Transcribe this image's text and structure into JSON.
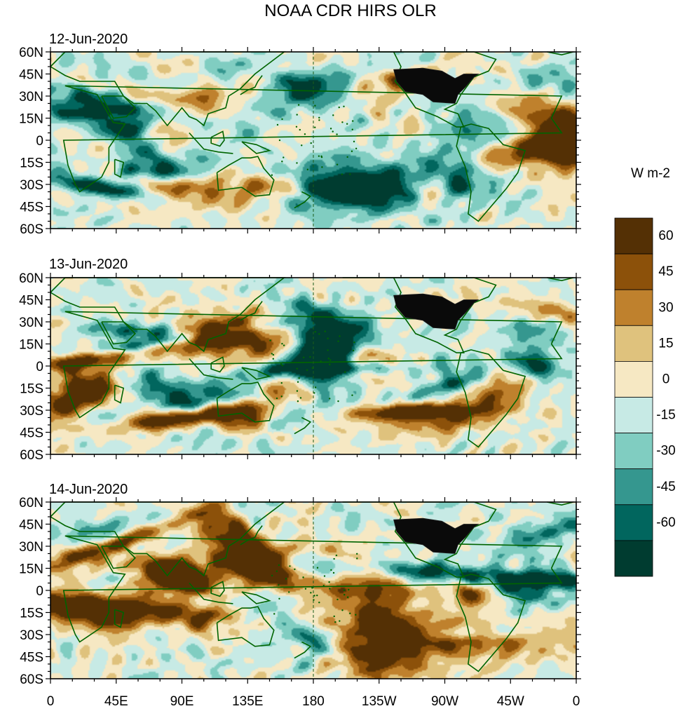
{
  "title": "NOAA CDR HIRS OLR",
  "panels": [
    {
      "date": "12-Jun-2020",
      "seed": 12
    },
    {
      "date": "13-Jun-2020",
      "seed": 13
    },
    {
      "date": "14-Jun-2020",
      "seed": 14
    }
  ],
  "lat_labels": [
    "60N",
    "45N",
    "30N",
    "15N",
    "0",
    "15S",
    "30S",
    "45S",
    "60S"
  ],
  "lon_labels": [
    "0",
    "45E",
    "90E",
    "135E",
    "180",
    "135W",
    "90W",
    "45W",
    "0"
  ],
  "colorbar": {
    "units": "W m-2",
    "tick_labels": [
      "60",
      "45",
      "30",
      "15",
      "0",
      "-15",
      "-30",
      "-45",
      "-60"
    ],
    "bins_top_to_bottom": [
      {
        "color": "#543005",
        "range": "> 60"
      },
      {
        "color": "#8c510a",
        "range": "45 to 60"
      },
      {
        "color": "#bf812d",
        "range": "30 to 45"
      },
      {
        "color": "#dfc27d",
        "range": "15 to 30"
      },
      {
        "color": "#f6e8c3",
        "range": "0 to 15"
      },
      {
        "color": "#c7eae5",
        "range": "-15 to 0"
      },
      {
        "color": "#80cdc1",
        "range": "-30 to -15"
      },
      {
        "color": "#35978f",
        "range": "-45 to -30"
      },
      {
        "color": "#01665e",
        "range": "-60 to -45"
      },
      {
        "color": "#003c30",
        "range": "< -60"
      }
    ]
  },
  "colors": {
    "coastline": "#006400",
    "dateline": "#1a5c1a",
    "us_states_fill": "#0a0a0a"
  }
}
